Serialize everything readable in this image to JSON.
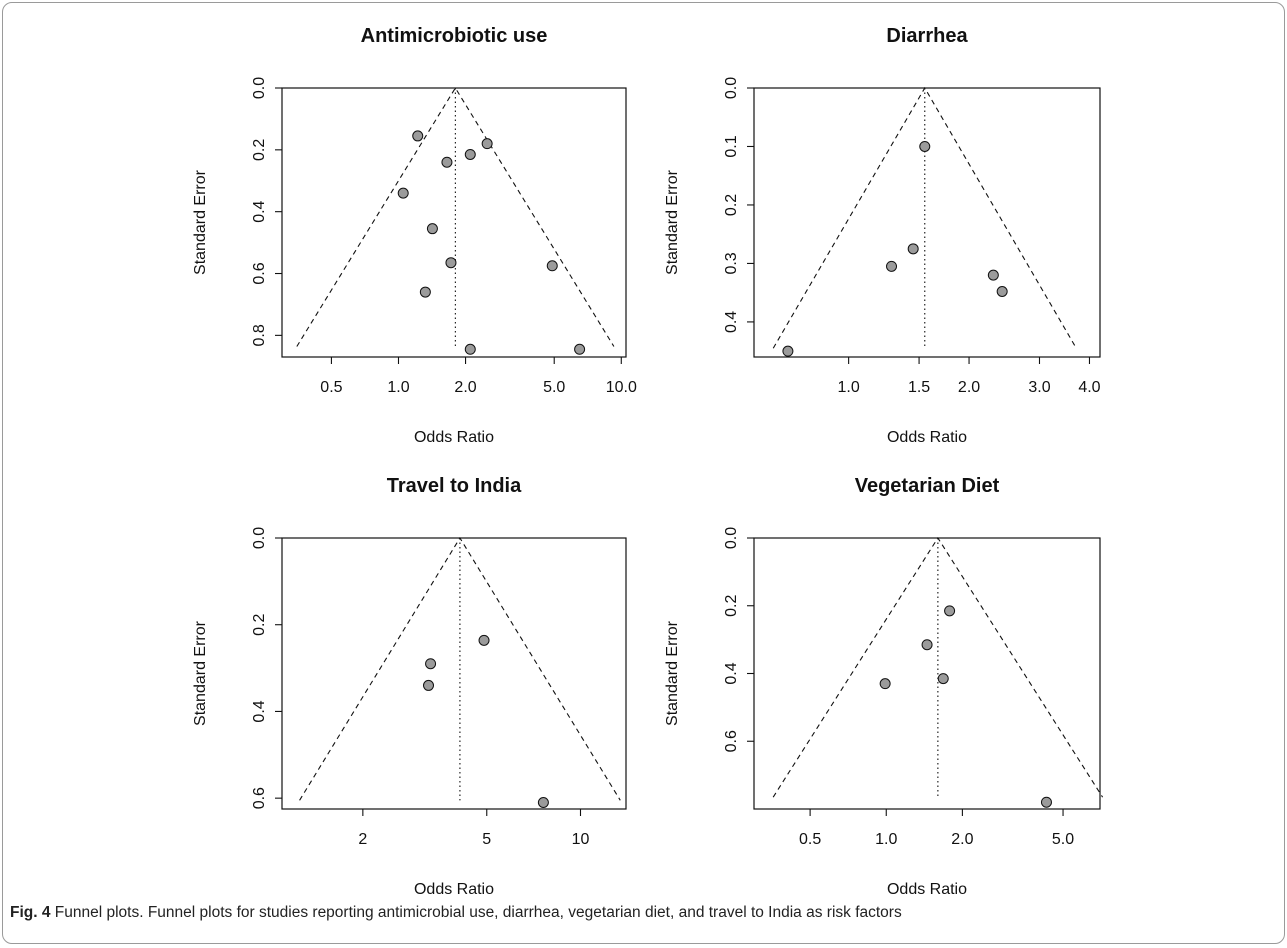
{
  "chart_data": [
    {
      "type": "scatter",
      "title": "Antimicrobiotic use",
      "xlabel": "Odds Ratio",
      "ylabel": "Standard Error",
      "x_scale": "log",
      "xlim": [
        0.3,
        10.5
      ],
      "ylim": [
        0.87,
        0.0
      ],
      "x_ticks": [
        0.5,
        1.0,
        2.0,
        5.0,
        10.0
      ],
      "x_tick_labels": [
        "0.5",
        "1.0",
        "2.0",
        "5.0",
        "10.0"
      ],
      "y_ticks": [
        0.0,
        0.2,
        0.4,
        0.6,
        0.8
      ],
      "y_tick_labels": [
        "0.0",
        "0.2",
        "0.4",
        "0.6",
        "0.8"
      ],
      "summary_or": 1.8,
      "funnel_se_max": 0.836,
      "points": [
        {
          "x": 1.22,
          "y": 0.155
        },
        {
          "x": 2.5,
          "y": 0.18
        },
        {
          "x": 2.1,
          "y": 0.215
        },
        {
          "x": 1.65,
          "y": 0.24
        },
        {
          "x": 1.05,
          "y": 0.34
        },
        {
          "x": 1.42,
          "y": 0.455
        },
        {
          "x": 1.72,
          "y": 0.565
        },
        {
          "x": 4.9,
          "y": 0.575
        },
        {
          "x": 1.32,
          "y": 0.66
        },
        {
          "x": 2.1,
          "y": 0.845
        },
        {
          "x": 6.5,
          "y": 0.845
        }
      ]
    },
    {
      "type": "scatter",
      "title": "Diarrhea",
      "xlabel": "Odds Ratio",
      "ylabel": "Standard Error",
      "x_scale": "log",
      "xlim": [
        0.58,
        4.25
      ],
      "ylim": [
        0.46,
        0.0
      ],
      "x_ticks": [
        1.0,
        1.5,
        2.0,
        3.0,
        4.0
      ],
      "x_tick_labels": [
        "1.0",
        "1.5",
        "2.0",
        "3.0",
        "4.0"
      ],
      "y_ticks": [
        0.0,
        0.1,
        0.2,
        0.3,
        0.4
      ],
      "y_tick_labels": [
        "0.0",
        "0.1",
        "0.2",
        "0.3",
        "0.4"
      ],
      "summary_or": 1.55,
      "funnel_se_max": 0.445,
      "points": [
        {
          "x": 1.55,
          "y": 0.1
        },
        {
          "x": 1.45,
          "y": 0.275
        },
        {
          "x": 1.28,
          "y": 0.305
        },
        {
          "x": 2.3,
          "y": 0.32
        },
        {
          "x": 2.42,
          "y": 0.348
        },
        {
          "x": 0.705,
          "y": 0.45
        }
      ]
    },
    {
      "type": "scatter",
      "title": "Travel to India",
      "xlabel": "Odds Ratio",
      "ylabel": "Standard Error",
      "x_scale": "log",
      "xlim": [
        1.1,
        14.0
      ],
      "ylim": [
        0.625,
        0.0
      ],
      "x_ticks": [
        2,
        5,
        10
      ],
      "x_tick_labels": [
        "2",
        "5",
        "10"
      ],
      "y_ticks": [
        0.0,
        0.2,
        0.4,
        0.6
      ],
      "y_tick_labels": [
        "0.0",
        "0.2",
        "0.4",
        "0.6"
      ],
      "summary_or": 4.1,
      "funnel_se_max": 0.605,
      "points": [
        {
          "x": 4.9,
          "y": 0.236
        },
        {
          "x": 3.3,
          "y": 0.29
        },
        {
          "x": 3.25,
          "y": 0.34
        },
        {
          "x": 7.6,
          "y": 0.61
        }
      ]
    },
    {
      "type": "scatter",
      "title": "Vegetarian Diet",
      "xlabel": "Odds Ratio",
      "ylabel": "Standard Error",
      "x_scale": "log",
      "xlim": [
        0.3,
        7.0
      ],
      "ylim": [
        0.8,
        0.0
      ],
      "x_ticks": [
        0.5,
        1.0,
        2.0,
        5.0
      ],
      "x_tick_labels": [
        "0.5",
        "1.0",
        "2.0",
        "5.0"
      ],
      "y_ticks": [
        0.0,
        0.2,
        0.4,
        0.6
      ],
      "y_tick_labels": [
        "0.0",
        "0.2",
        "0.4",
        "0.6"
      ],
      "summary_or": 1.6,
      "funnel_se_max": 0.765,
      "points": [
        {
          "x": 1.78,
          "y": 0.215
        },
        {
          "x": 1.45,
          "y": 0.315
        },
        {
          "x": 1.68,
          "y": 0.415
        },
        {
          "x": 0.99,
          "y": 0.43
        },
        {
          "x": 4.3,
          "y": 0.78
        }
      ]
    }
  ],
  "caption": {
    "label": "Fig. 4",
    "text": " Funnel plots. Funnel plots for studies reporting antimicrobial use, diarrhea, vegetarian diet, and travel to India as risk factors"
  }
}
